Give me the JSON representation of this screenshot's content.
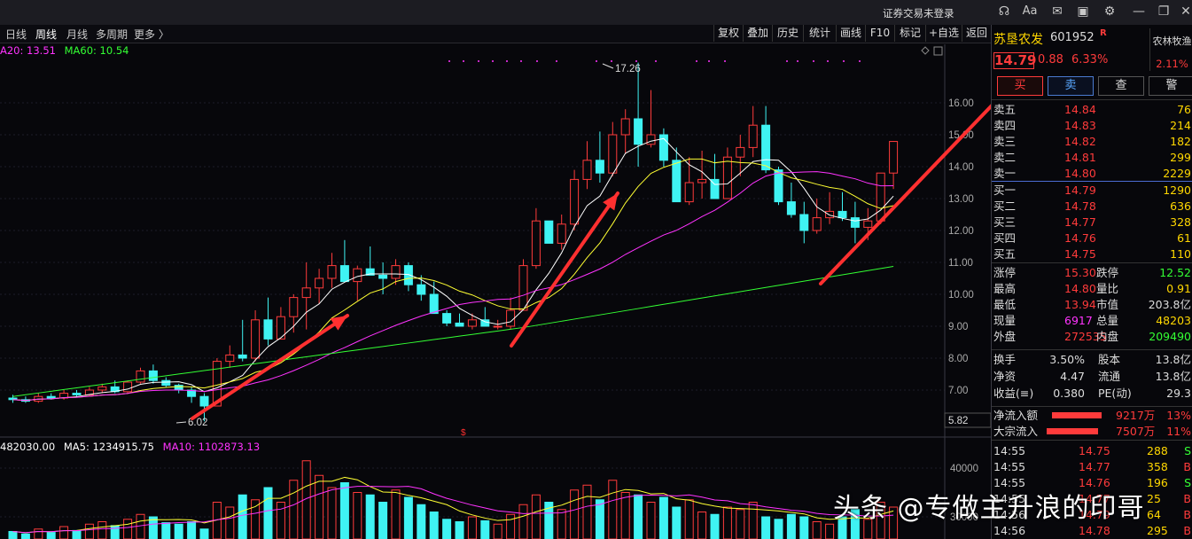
{
  "titlebar": {
    "status": "证券交易未登录"
  },
  "toolbar": {
    "periods": [
      "日线",
      "周线",
      "月线",
      "多周期",
      "更多 〉"
    ],
    "active_period": "周线",
    "buttons": [
      "复权",
      "叠加",
      "历史",
      "统计",
      "画线",
      "F10",
      "标记",
      "+自选",
      "返回"
    ]
  },
  "ma_legend": {
    "ma20": "A20: 13.51",
    "ma60": "MA60: 10.54"
  },
  "price_axis": [
    "16.00",
    "15.00",
    "14.00",
    "13.00",
    "12.00",
    "11.00",
    "10.00",
    "9.00",
    "8.00",
    "7.00"
  ],
  "price_axis_label_current": "5.82",
  "annot_high": "17.26",
  "annot_low": "6.02",
  "volume_legend": {
    "vol": "482030.00",
    "ma5": "MA5: 1234915.75",
    "ma10": "MA10: 1102873.13"
  },
  "volume_axis": [
    "40000",
    "30000"
  ],
  "colors": {
    "up": "#ff3b3b",
    "down": "#3ff3f3",
    "ma5": "#ffffff",
    "ma10": "#ffff33",
    "ma20": "#ff33ff",
    "ma60": "#33ff33",
    "accent": "#ff3030"
  },
  "stock": {
    "name": "苏垦农发",
    "code": "601952",
    "flag": "R",
    "sector": "农林牧渔",
    "sector_change": "2.11%",
    "price": "14.79",
    "change": "0.88",
    "pct": "6.33%"
  },
  "trade_buttons": [
    "买",
    "卖",
    "查",
    "警"
  ],
  "asks": [
    {
      "label": "卖五",
      "price": "14.84",
      "vol": "76"
    },
    {
      "label": "卖四",
      "price": "14.83",
      "vol": "214"
    },
    {
      "label": "卖三",
      "price": "14.82",
      "vol": "182"
    },
    {
      "label": "卖二",
      "price": "14.81",
      "vol": "299"
    },
    {
      "label": "卖一",
      "price": "14.80",
      "vol": "2229"
    }
  ],
  "bids": [
    {
      "label": "买一",
      "price": "14.79",
      "vol": "1290"
    },
    {
      "label": "买二",
      "price": "14.78",
      "vol": "636"
    },
    {
      "label": "买三",
      "price": "14.77",
      "vol": "328"
    },
    {
      "label": "买四",
      "price": "14.76",
      "vol": "61"
    },
    {
      "label": "买五",
      "price": "14.75",
      "vol": "110"
    }
  ],
  "stats": [
    {
      "l1": "涨停",
      "v1": "15.30",
      "l2": "跌停",
      "v2": "12.52"
    },
    {
      "l1": "最高",
      "v1": "14.80",
      "l2": "量比",
      "v2": "0.91"
    },
    {
      "l1": "最低",
      "v1": "13.94",
      "l2": "市值",
      "v2": "203.8亿"
    },
    {
      "l1": "现量",
      "v1": "6917",
      "l2": "总量",
      "v2": "48203"
    },
    {
      "l1": "外盘",
      "v1": "272535",
      "l2": "内盘",
      "v2": "209490"
    }
  ],
  "fundamentals": [
    {
      "l1": "换手",
      "v1": "3.50%",
      "l2": "股本",
      "v2": "13.8亿"
    },
    {
      "l1": "净资",
      "v1": "4.47",
      "l2": "流通",
      "v2": "13.8亿"
    },
    {
      "l1": "收益(≡)",
      "v1": "0.380",
      "l2": "PE(动)",
      "v2": "29.3"
    }
  ],
  "flows": [
    {
      "label": "净流入额",
      "value": "9217万",
      "pct": "13%"
    },
    {
      "label": "大宗流入",
      "value": "7507万",
      "pct": "11%"
    }
  ],
  "ticks": [
    {
      "time": "14:55",
      "price": "14.75",
      "vol": "288",
      "flag": "S"
    },
    {
      "time": "14:55",
      "price": "14.77",
      "vol": "358",
      "flag": "B"
    },
    {
      "time": "14:55",
      "price": "14.76",
      "vol": "196",
      "flag": "S"
    },
    {
      "time": "14:55",
      "price": "14.77",
      "vol": "25",
      "flag": "B"
    },
    {
      "time": "14:56",
      "price": "14.79",
      "vol": "64",
      "flag": "B"
    },
    {
      "time": "14:56",
      "price": "14.78",
      "vol": "295",
      "flag": "B"
    }
  ],
  "watermark": "头条 @专做主升浪的印哥"
}
